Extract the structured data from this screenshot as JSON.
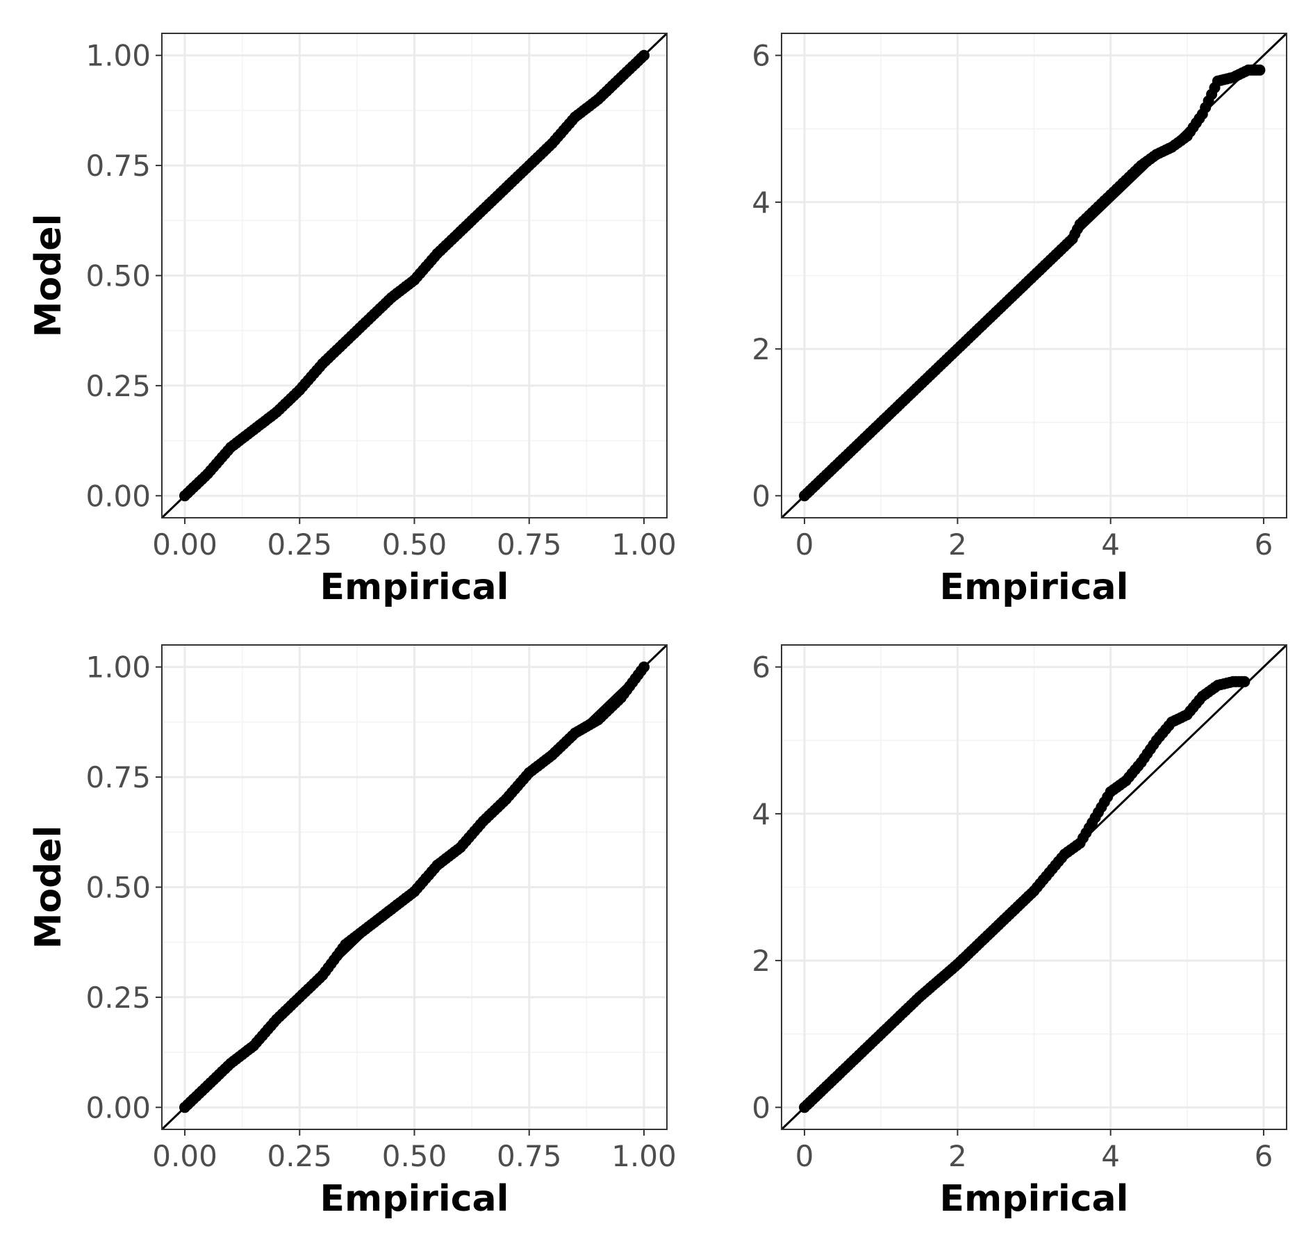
{
  "chart_data": [
    {
      "type": "scatter",
      "panel": "top-left",
      "xlabel": "Empirical",
      "ylabel": "Model",
      "xlim": [
        -0.05,
        1.05
      ],
      "ylim": [
        -0.05,
        1.05
      ],
      "xticks": [
        "0.00",
        "0.25",
        "0.50",
        "0.75",
        "1.00"
      ],
      "yticks": [
        "0.00",
        "0.25",
        "0.50",
        "0.75",
        "1.00"
      ],
      "reference_line": "y = x",
      "grid": true,
      "series": [
        {
          "x": [
            0.0,
            0.05,
            0.1,
            0.15,
            0.2,
            0.25,
            0.3,
            0.35,
            0.4,
            0.45,
            0.5,
            0.55,
            0.6,
            0.65,
            0.7,
            0.75,
            0.8,
            0.85,
            0.9,
            0.95,
            1.0
          ],
          "y": [
            0.0,
            0.05,
            0.11,
            0.15,
            0.19,
            0.24,
            0.3,
            0.35,
            0.4,
            0.45,
            0.49,
            0.55,
            0.6,
            0.65,
            0.7,
            0.75,
            0.8,
            0.86,
            0.9,
            0.95,
            1.0
          ]
        }
      ]
    },
    {
      "type": "scatter",
      "panel": "top-right",
      "xlabel": "Empirical",
      "ylabel": "",
      "xlim": [
        -0.3,
        6.3
      ],
      "ylim": [
        -0.3,
        6.3
      ],
      "xticks": [
        "0",
        "2",
        "4",
        "6"
      ],
      "yticks": [
        "0",
        "2",
        "4",
        "6"
      ],
      "reference_line": "y = x",
      "grid": true,
      "series": [
        {
          "x": [
            0.0,
            0.5,
            1.0,
            1.5,
            2.0,
            2.5,
            3.0,
            3.5,
            3.6,
            3.8,
            4.0,
            4.2,
            4.4,
            4.6,
            4.8,
            5.0,
            5.2,
            5.4,
            5.6,
            5.8,
            5.95
          ],
          "y": [
            0.0,
            0.5,
            1.0,
            1.5,
            2.0,
            2.5,
            3.0,
            3.5,
            3.7,
            3.9,
            4.1,
            4.3,
            4.5,
            4.65,
            4.75,
            4.9,
            5.2,
            5.65,
            5.7,
            5.8,
            5.8
          ]
        }
      ]
    },
    {
      "type": "scatter",
      "panel": "bottom-left",
      "xlabel": "Empirical",
      "ylabel": "Model",
      "xlim": [
        -0.05,
        1.05
      ],
      "ylim": [
        -0.05,
        1.05
      ],
      "xticks": [
        "0.00",
        "0.25",
        "0.50",
        "0.75",
        "1.00"
      ],
      "yticks": [
        "0.00",
        "0.25",
        "0.50",
        "0.75",
        "1.00"
      ],
      "reference_line": "y = x",
      "grid": true,
      "series": [
        {
          "x": [
            0.0,
            0.05,
            0.1,
            0.15,
            0.2,
            0.25,
            0.3,
            0.35,
            0.4,
            0.45,
            0.5,
            0.55,
            0.6,
            0.65,
            0.7,
            0.75,
            0.8,
            0.85,
            0.9,
            0.95,
            1.0
          ],
          "y": [
            0.0,
            0.05,
            0.1,
            0.14,
            0.2,
            0.25,
            0.3,
            0.37,
            0.41,
            0.45,
            0.49,
            0.55,
            0.59,
            0.65,
            0.7,
            0.76,
            0.8,
            0.85,
            0.88,
            0.93,
            1.0
          ]
        }
      ]
    },
    {
      "type": "scatter",
      "panel": "bottom-right",
      "xlabel": "Empirical",
      "ylabel": "",
      "xlim": [
        -0.3,
        6.3
      ],
      "ylim": [
        -0.3,
        6.3
      ],
      "xticks": [
        "0",
        "2",
        "4",
        "6"
      ],
      "yticks": [
        "0",
        "2",
        "4",
        "6"
      ],
      "reference_line": "y = x",
      "grid": true,
      "series": [
        {
          "x": [
            0.0,
            0.5,
            1.0,
            1.5,
            2.0,
            2.5,
            3.0,
            3.2,
            3.4,
            3.6,
            3.8,
            4.0,
            4.2,
            4.4,
            4.6,
            4.8,
            5.0,
            5.2,
            5.4,
            5.6,
            5.75
          ],
          "y": [
            0.0,
            0.5,
            1.0,
            1.5,
            1.95,
            2.45,
            2.95,
            3.2,
            3.45,
            3.6,
            3.95,
            4.3,
            4.45,
            4.7,
            5.0,
            5.25,
            5.35,
            5.6,
            5.75,
            5.8,
            5.8
          ]
        }
      ]
    }
  ]
}
